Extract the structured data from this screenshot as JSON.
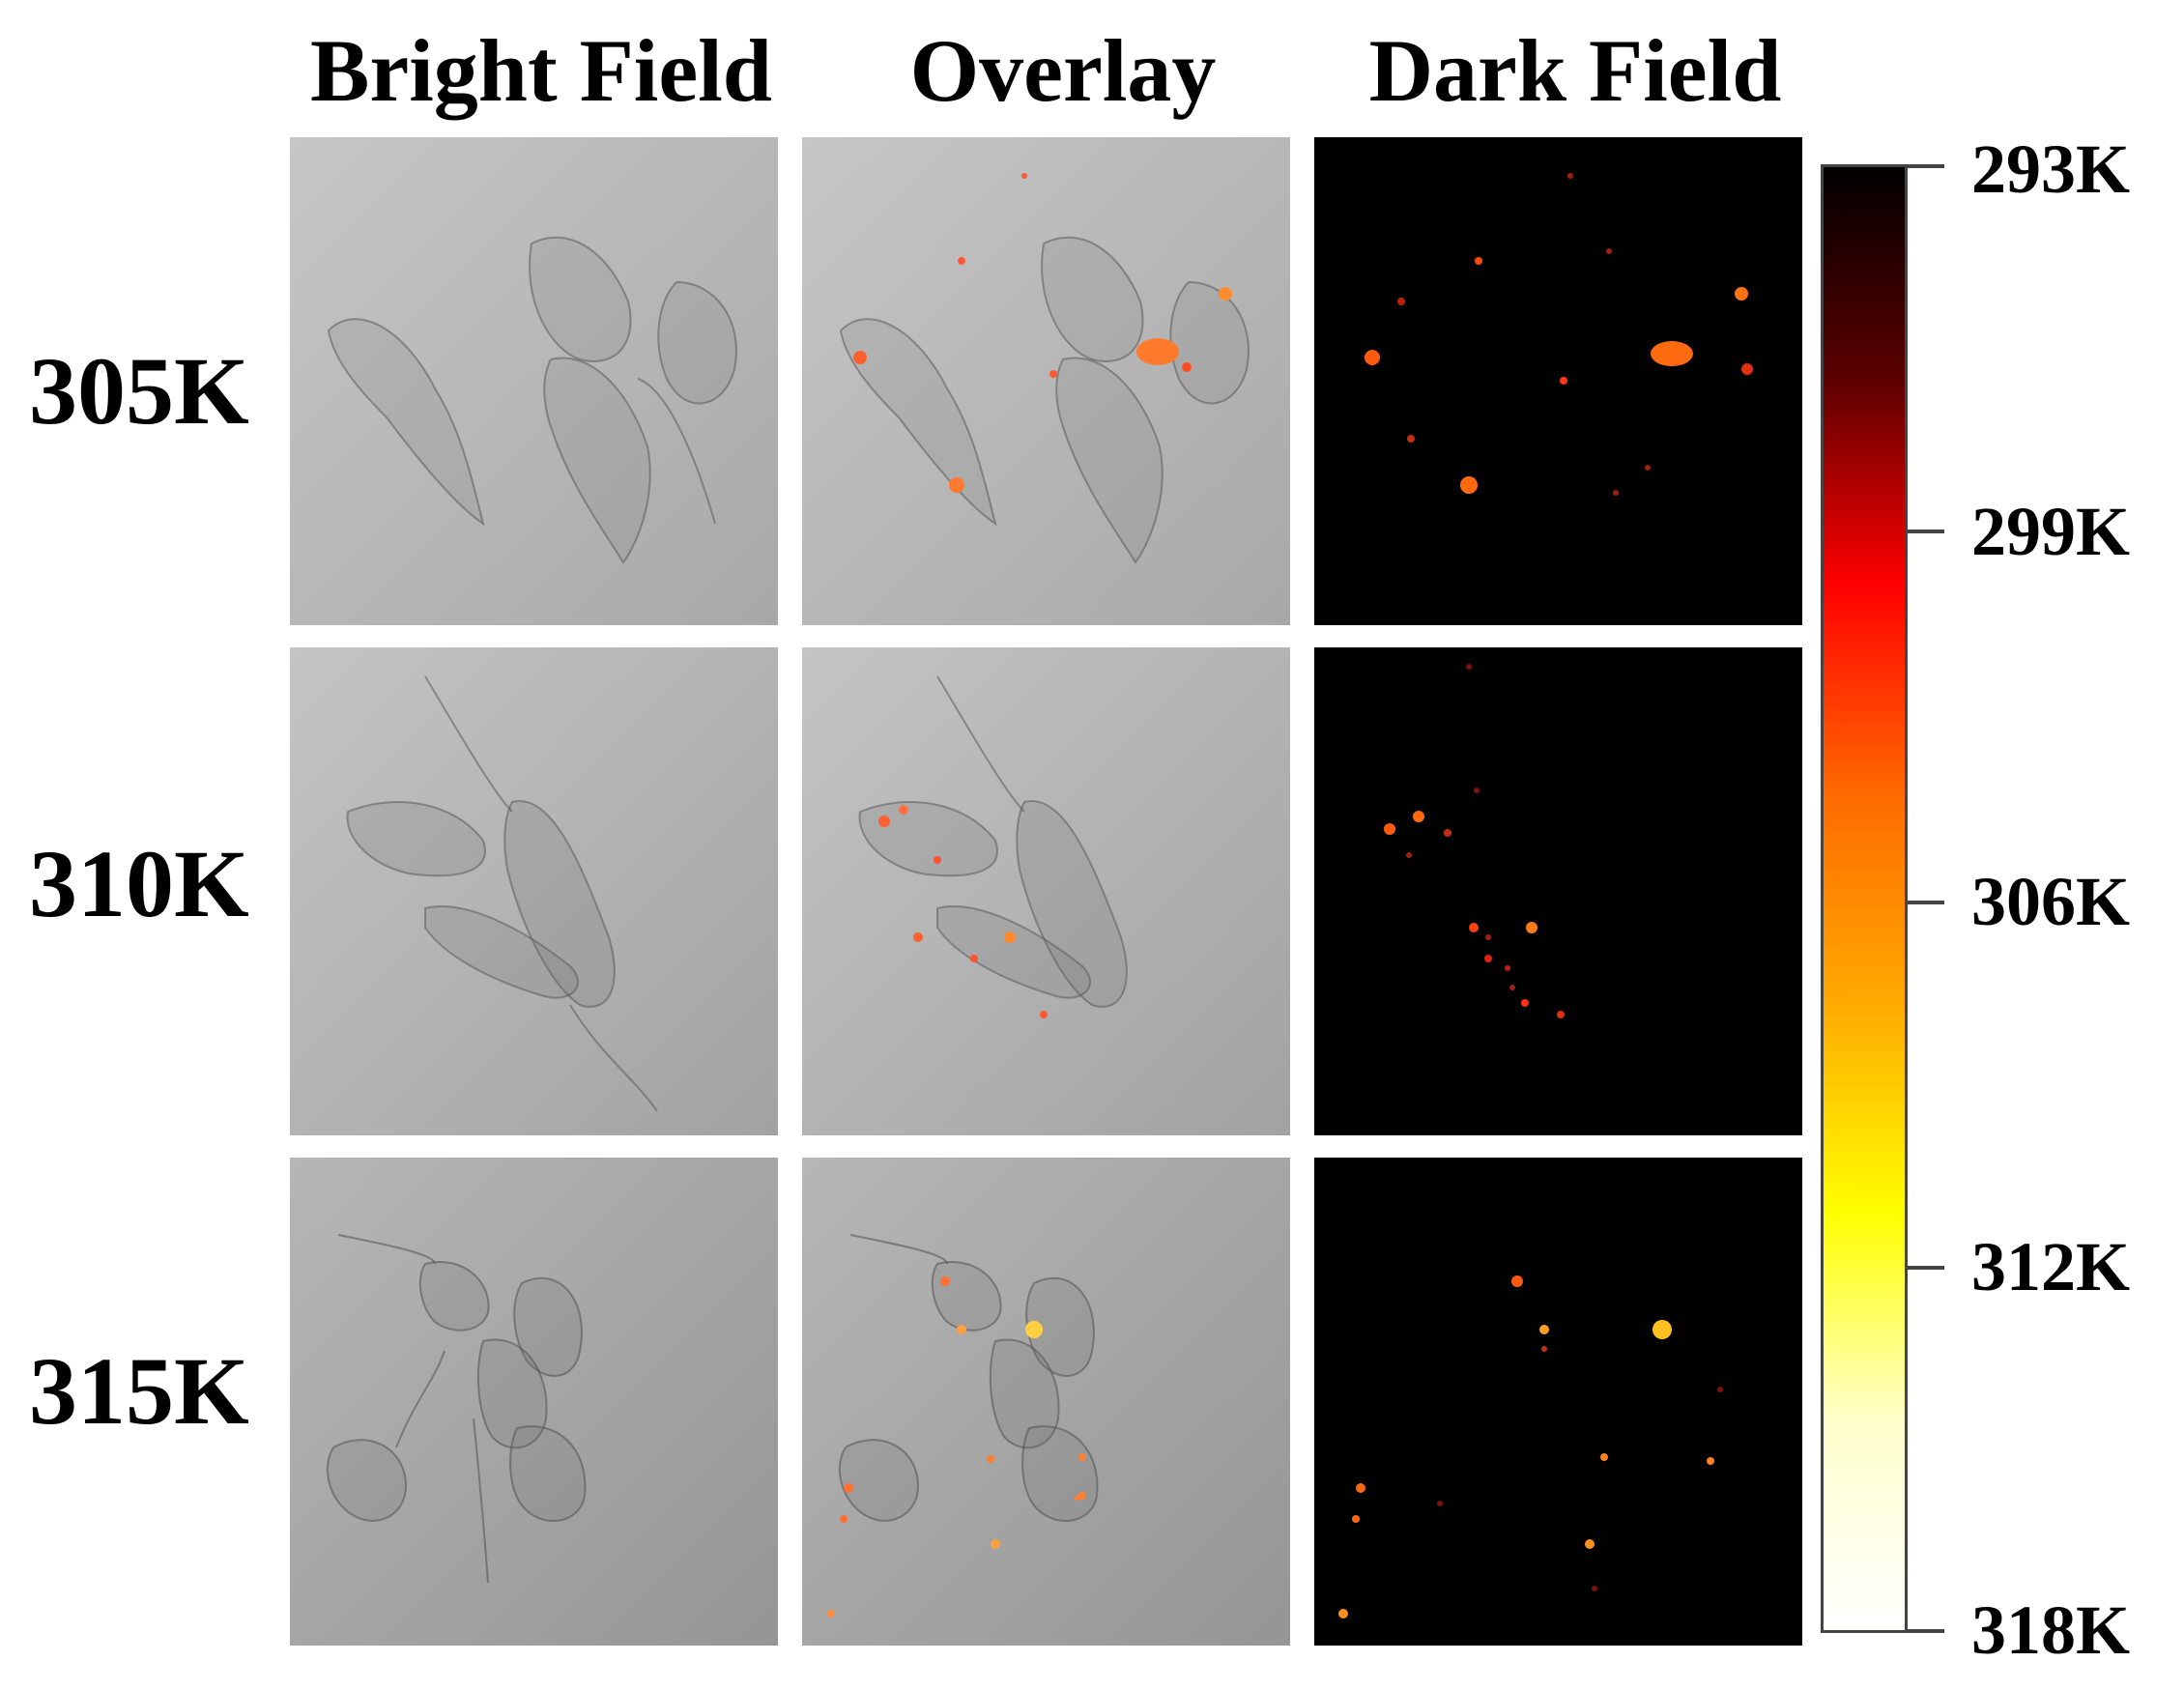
{
  "columns": [
    "Bright Field",
    "Overlay",
    "Dark Field"
  ],
  "rows": [
    "305K",
    "310K",
    "315K"
  ],
  "colorbar": {
    "ticks": [
      "293K",
      "299K",
      "306K",
      "312K",
      "318K"
    ],
    "gradient_colors": [
      "#000000",
      "#5a0000",
      "#ff0000",
      "#ff6a00",
      "#ffaa00",
      "#ffff00",
      "#ffffcc",
      "#ffffff"
    ]
  }
}
